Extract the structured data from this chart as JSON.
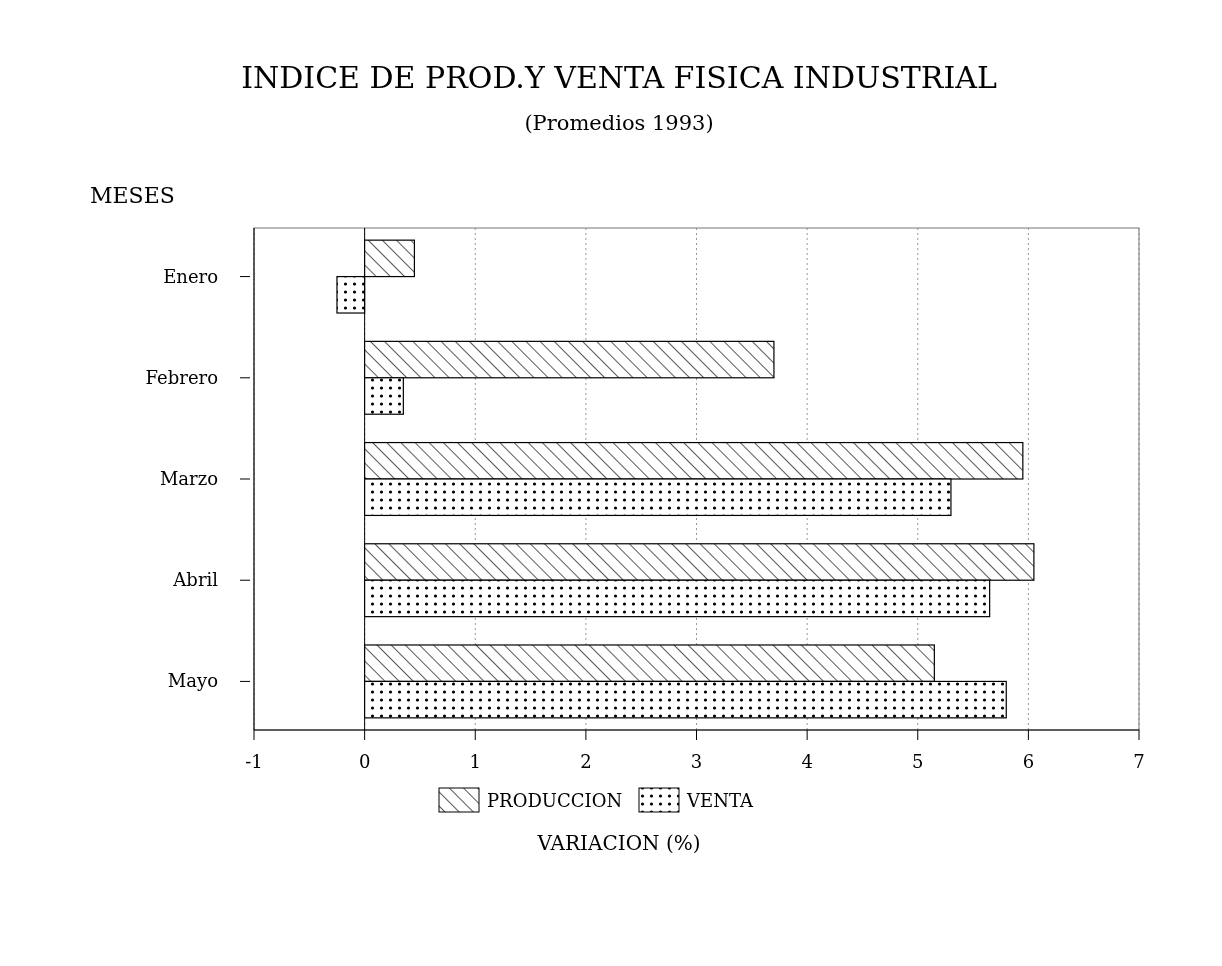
{
  "chart_data": {
    "type": "bar",
    "orientation": "horizontal",
    "title": "INDICE DE PROD.Y VENTA FISICA INDUSTRIAL",
    "subtitle": "(Promedios 1993)",
    "ylabel": "MESES",
    "xlabel": "VARIACION (%)",
    "categories": [
      "Enero",
      "Febrero",
      "Marzo",
      "Abril",
      "Mayo"
    ],
    "series": [
      {
        "name": "PRODUCCION",
        "color": "#000000",
        "values": [
          0.45,
          3.7,
          5.95,
          6.05,
          5.15
        ]
      },
      {
        "name": "VENTA",
        "color": "#000000",
        "values": [
          -0.25,
          0.35,
          5.3,
          5.65,
          5.8
        ]
      }
    ],
    "xlim": [
      -1,
      7
    ],
    "xticks": [
      -1,
      0,
      1,
      2,
      3,
      4,
      5,
      6,
      7
    ],
    "grid": "x",
    "legend": "bottom"
  }
}
